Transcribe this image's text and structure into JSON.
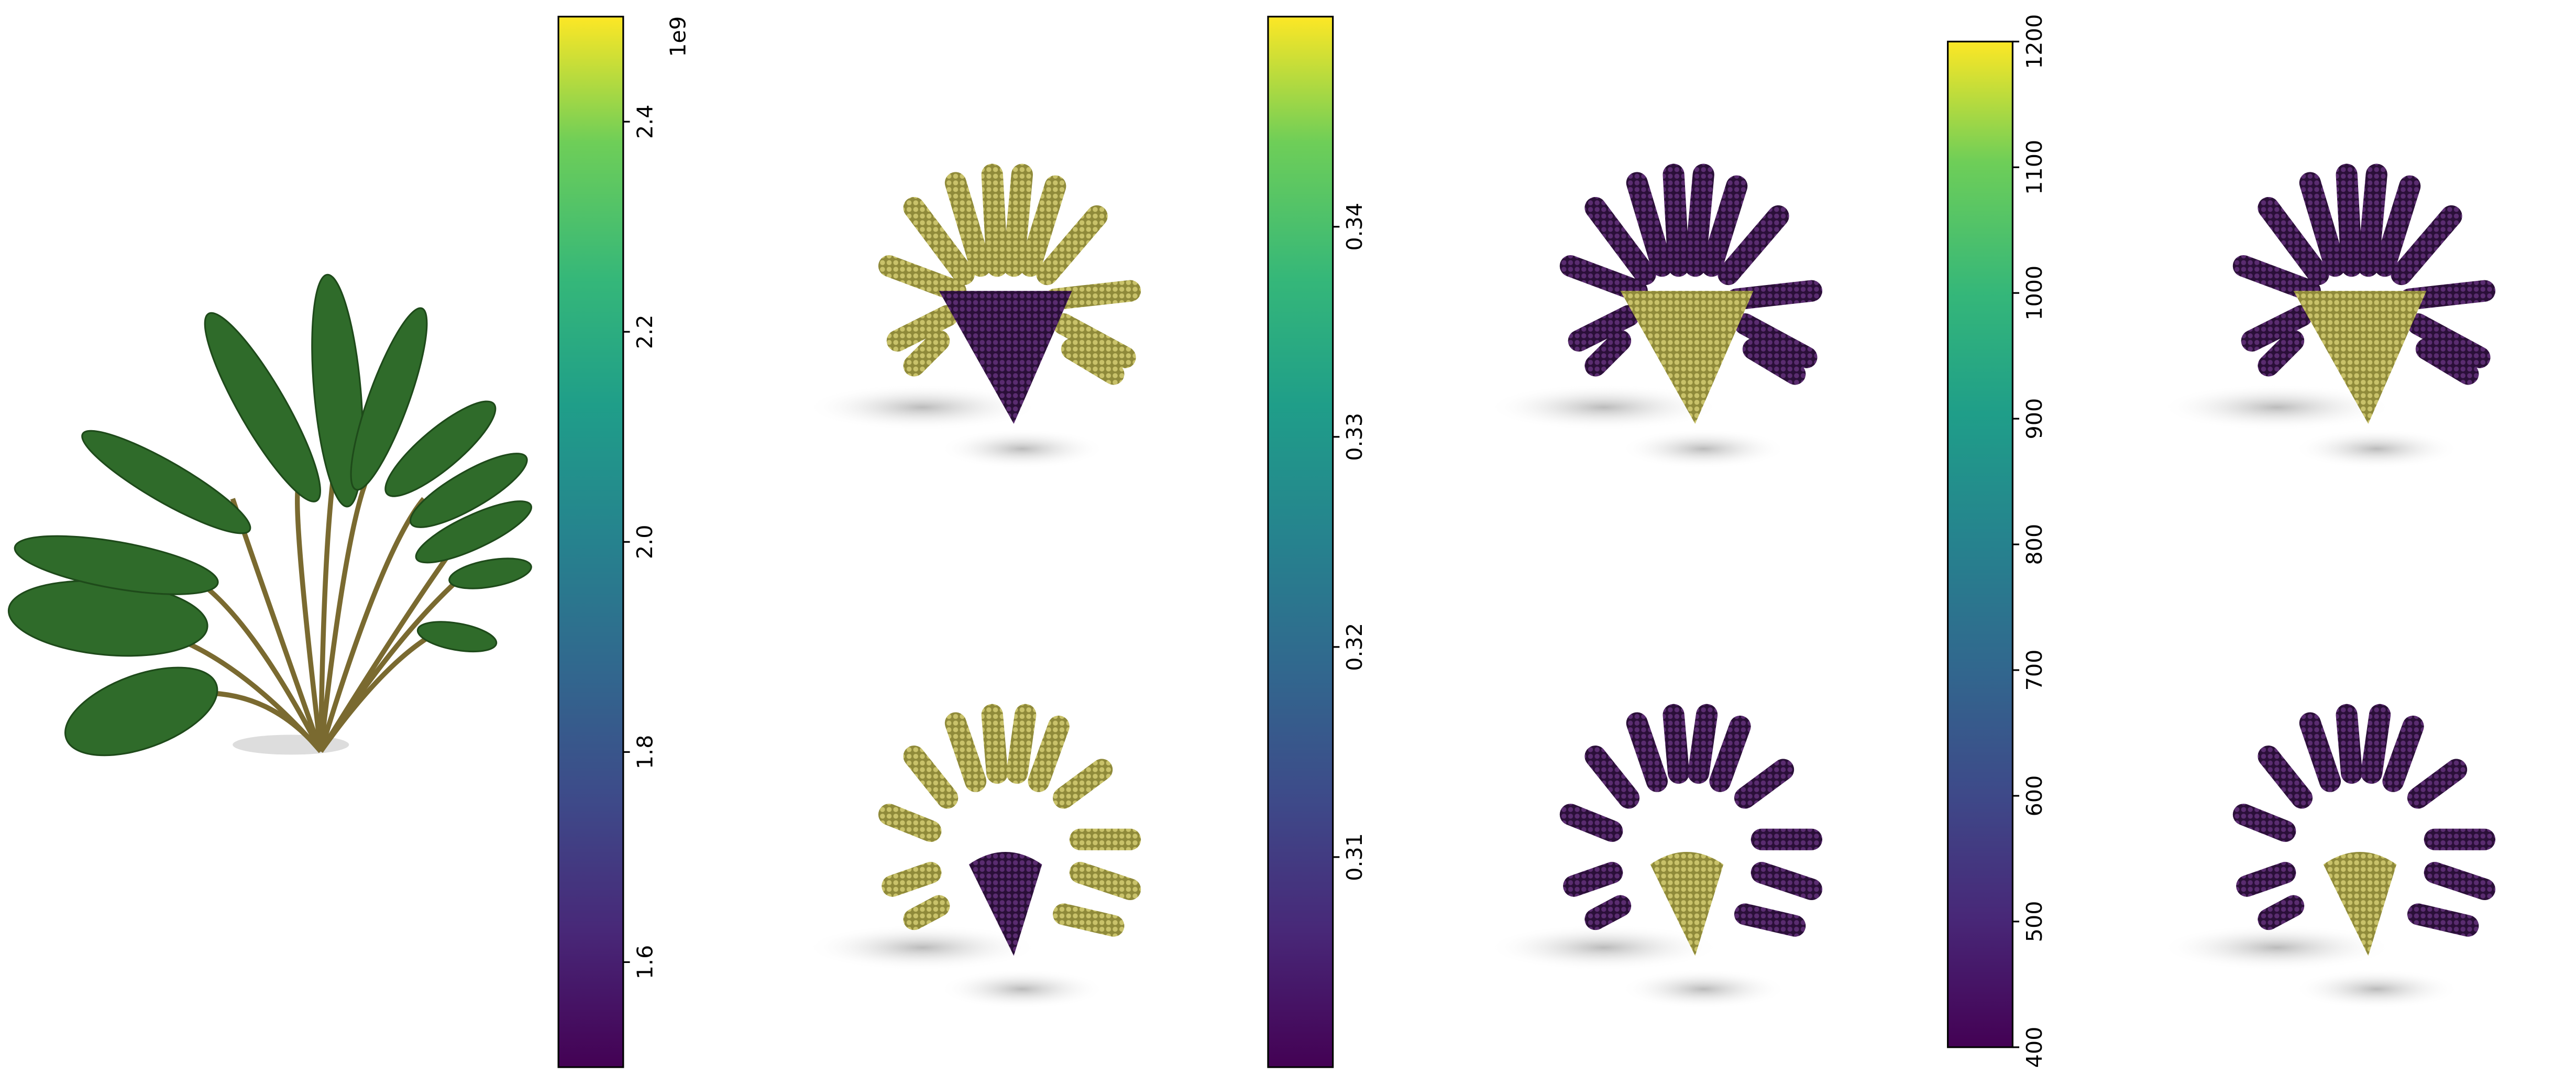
{
  "colorbars": [
    {
      "ylim": [
        1.5,
        2.5
      ],
      "yticks": [
        1.6,
        1.8,
        {
          "value": 2,
          "label": "2.0"
        },
        2.2,
        2.4
      ],
      "offset_label": "1e9"
    },
    {
      "ylim": [
        0.3,
        0.35
      ],
      "yticks": [
        0.31,
        0.32,
        0.33,
        0.34
      ]
    },
    {
      "ylim": [
        400,
        1200
      ],
      "yticks": [
        400,
        500,
        600,
        700,
        800,
        900,
        1000,
        1100,
        1200
      ]
    }
  ]
}
